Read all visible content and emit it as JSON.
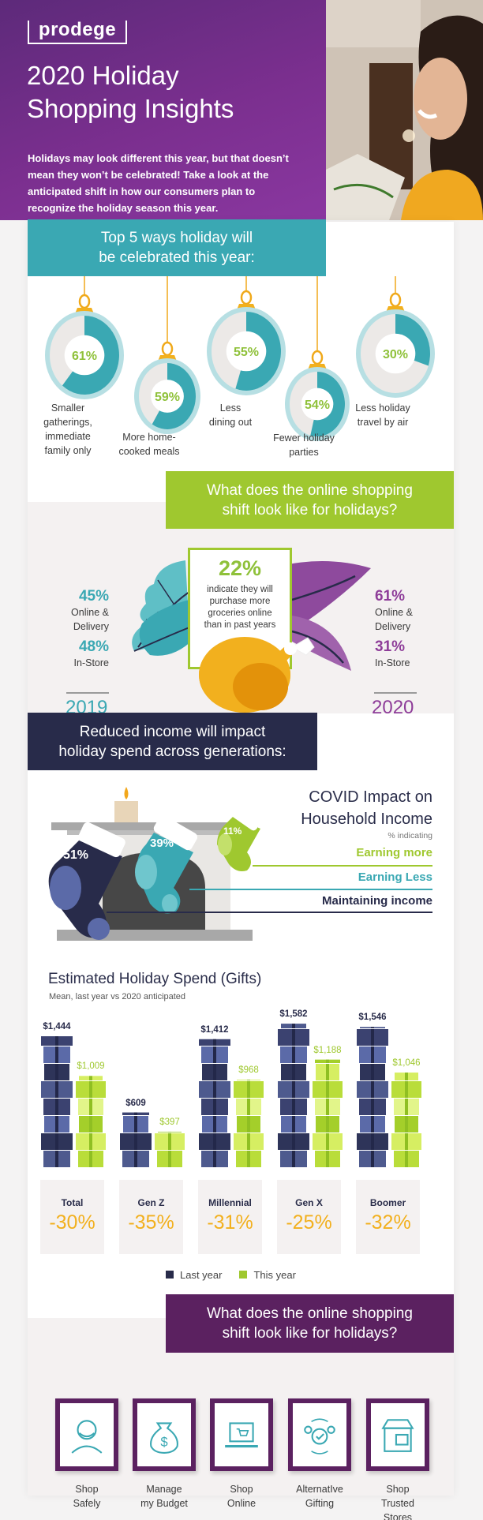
{
  "header": {
    "logo": "prodege",
    "title_line1": "2020 Holiday",
    "title_line2": "Shopping Insights",
    "intro": "Holidays may look different this year, but that doesn’t mean they won’t be celebrated! Take a look at the anticipated shift in how our consumers plan to recognize the holiday season this year."
  },
  "colors": {
    "purple": "#7b2f8f",
    "teal": "#3aa8b3",
    "green": "#9fc82f",
    "navy": "#282b4a",
    "plum": "#5b2160",
    "gold": "#f2b01e"
  },
  "top5": {
    "title_line1": "Top 5 ways holiday will",
    "title_line2": "be celebrated this year:",
    "items": [
      {
        "pct_label": "61%",
        "value": 61,
        "label_lines": [
          "Smaller",
          "gatherings,",
          "immediate",
          "family only"
        ]
      },
      {
        "pct_label": "59%",
        "value": 59,
        "label_lines": [
          "More home-",
          "cooked meals"
        ]
      },
      {
        "pct_label": "55%",
        "value": 55,
        "label_lines": [
          "Less",
          "dining out"
        ]
      },
      {
        "pct_label": "54%",
        "value": 54,
        "label_lines": [
          "Fewer holiday",
          "parties"
        ]
      },
      {
        "pct_label": "30%",
        "value": 30,
        "label_lines": [
          "Less holiday",
          "travel by air"
        ]
      }
    ]
  },
  "shift": {
    "title_line1": "What does the online shopping",
    "title_line2": "shift look like for holidays?",
    "y2019": {
      "online_pct": "45%",
      "online_label_1": "Online &",
      "online_label_2": "Delivery",
      "store_pct": "48%",
      "store_label": "In-Store",
      "year": "2019"
    },
    "y2020": {
      "online_pct": "61%",
      "online_label_1": "Online &",
      "online_label_2": "Delivery",
      "store_pct": "31%",
      "store_label": "In-Store",
      "year": "2020"
    },
    "groceries": {
      "pct": "22%",
      "lines": [
        "indicate they will",
        "purchase more",
        "groceries online",
        "than in past years"
      ]
    }
  },
  "income": {
    "banner_line1": "Reduced income will impact",
    "banner_line2": "holiday spend across generations:",
    "title_line1": "COVID Impact on",
    "title_line2": "Household Income",
    "subtitle": "% indicating",
    "items": [
      {
        "pct": "51%",
        "value": 51,
        "label": "Maintaining income"
      },
      {
        "pct": "39%",
        "value": 39,
        "label": "Earning Less"
      },
      {
        "pct": "11%",
        "value": 11,
        "label": "Earning more"
      }
    ]
  },
  "chart_data": {
    "type": "bar",
    "title": "Estimated Holiday Spend (Gifts)",
    "subtitle": "Mean, last year vs 2020 anticipated",
    "categories": [
      "Total",
      "Gen Z",
      "Millennial",
      "Gen X",
      "Boomer"
    ],
    "series": [
      {
        "name": "Last year",
        "values": [
          1444,
          609,
          1412,
          1582,
          1546
        ],
        "labels": [
          "$1,444",
          "$609",
          "$1,412",
          "$1,582",
          "$1,546"
        ]
      },
      {
        "name": "This year",
        "values": [
          1009,
          397,
          968,
          1188,
          1046
        ],
        "labels": [
          "$1,009",
          "$397",
          "$968",
          "$1,188",
          "$1,046"
        ]
      }
    ],
    "change_labels": [
      "-30%",
      "-35%",
      "-31%",
      "-25%",
      "-32%"
    ],
    "legend": [
      "Last year",
      "This year"
    ],
    "legend_position": "bottom",
    "xlabel": "",
    "ylabel": "",
    "ylim": [
      0,
      1600
    ],
    "grid": false
  },
  "tips": {
    "title_line1": "What does the online shopping",
    "title_line2": "shift look like for holidays?",
    "items": [
      {
        "icon": "masked-person-icon",
        "label_lines": [
          "Shop",
          "Safely"
        ]
      },
      {
        "icon": "money-bag-icon",
        "label_lines": [
          "Manage",
          "my Budget"
        ]
      },
      {
        "icon": "laptop-cart-icon",
        "label_lines": [
          "Shop",
          "Online"
        ]
      },
      {
        "icon": "gift-exchange-icon",
        "label_lines": [
          "AlternatIve",
          "Gifting"
        ]
      },
      {
        "icon": "storefront-icon",
        "label_lines": [
          "Shop",
          "Trusted",
          "Stores"
        ]
      }
    ]
  }
}
